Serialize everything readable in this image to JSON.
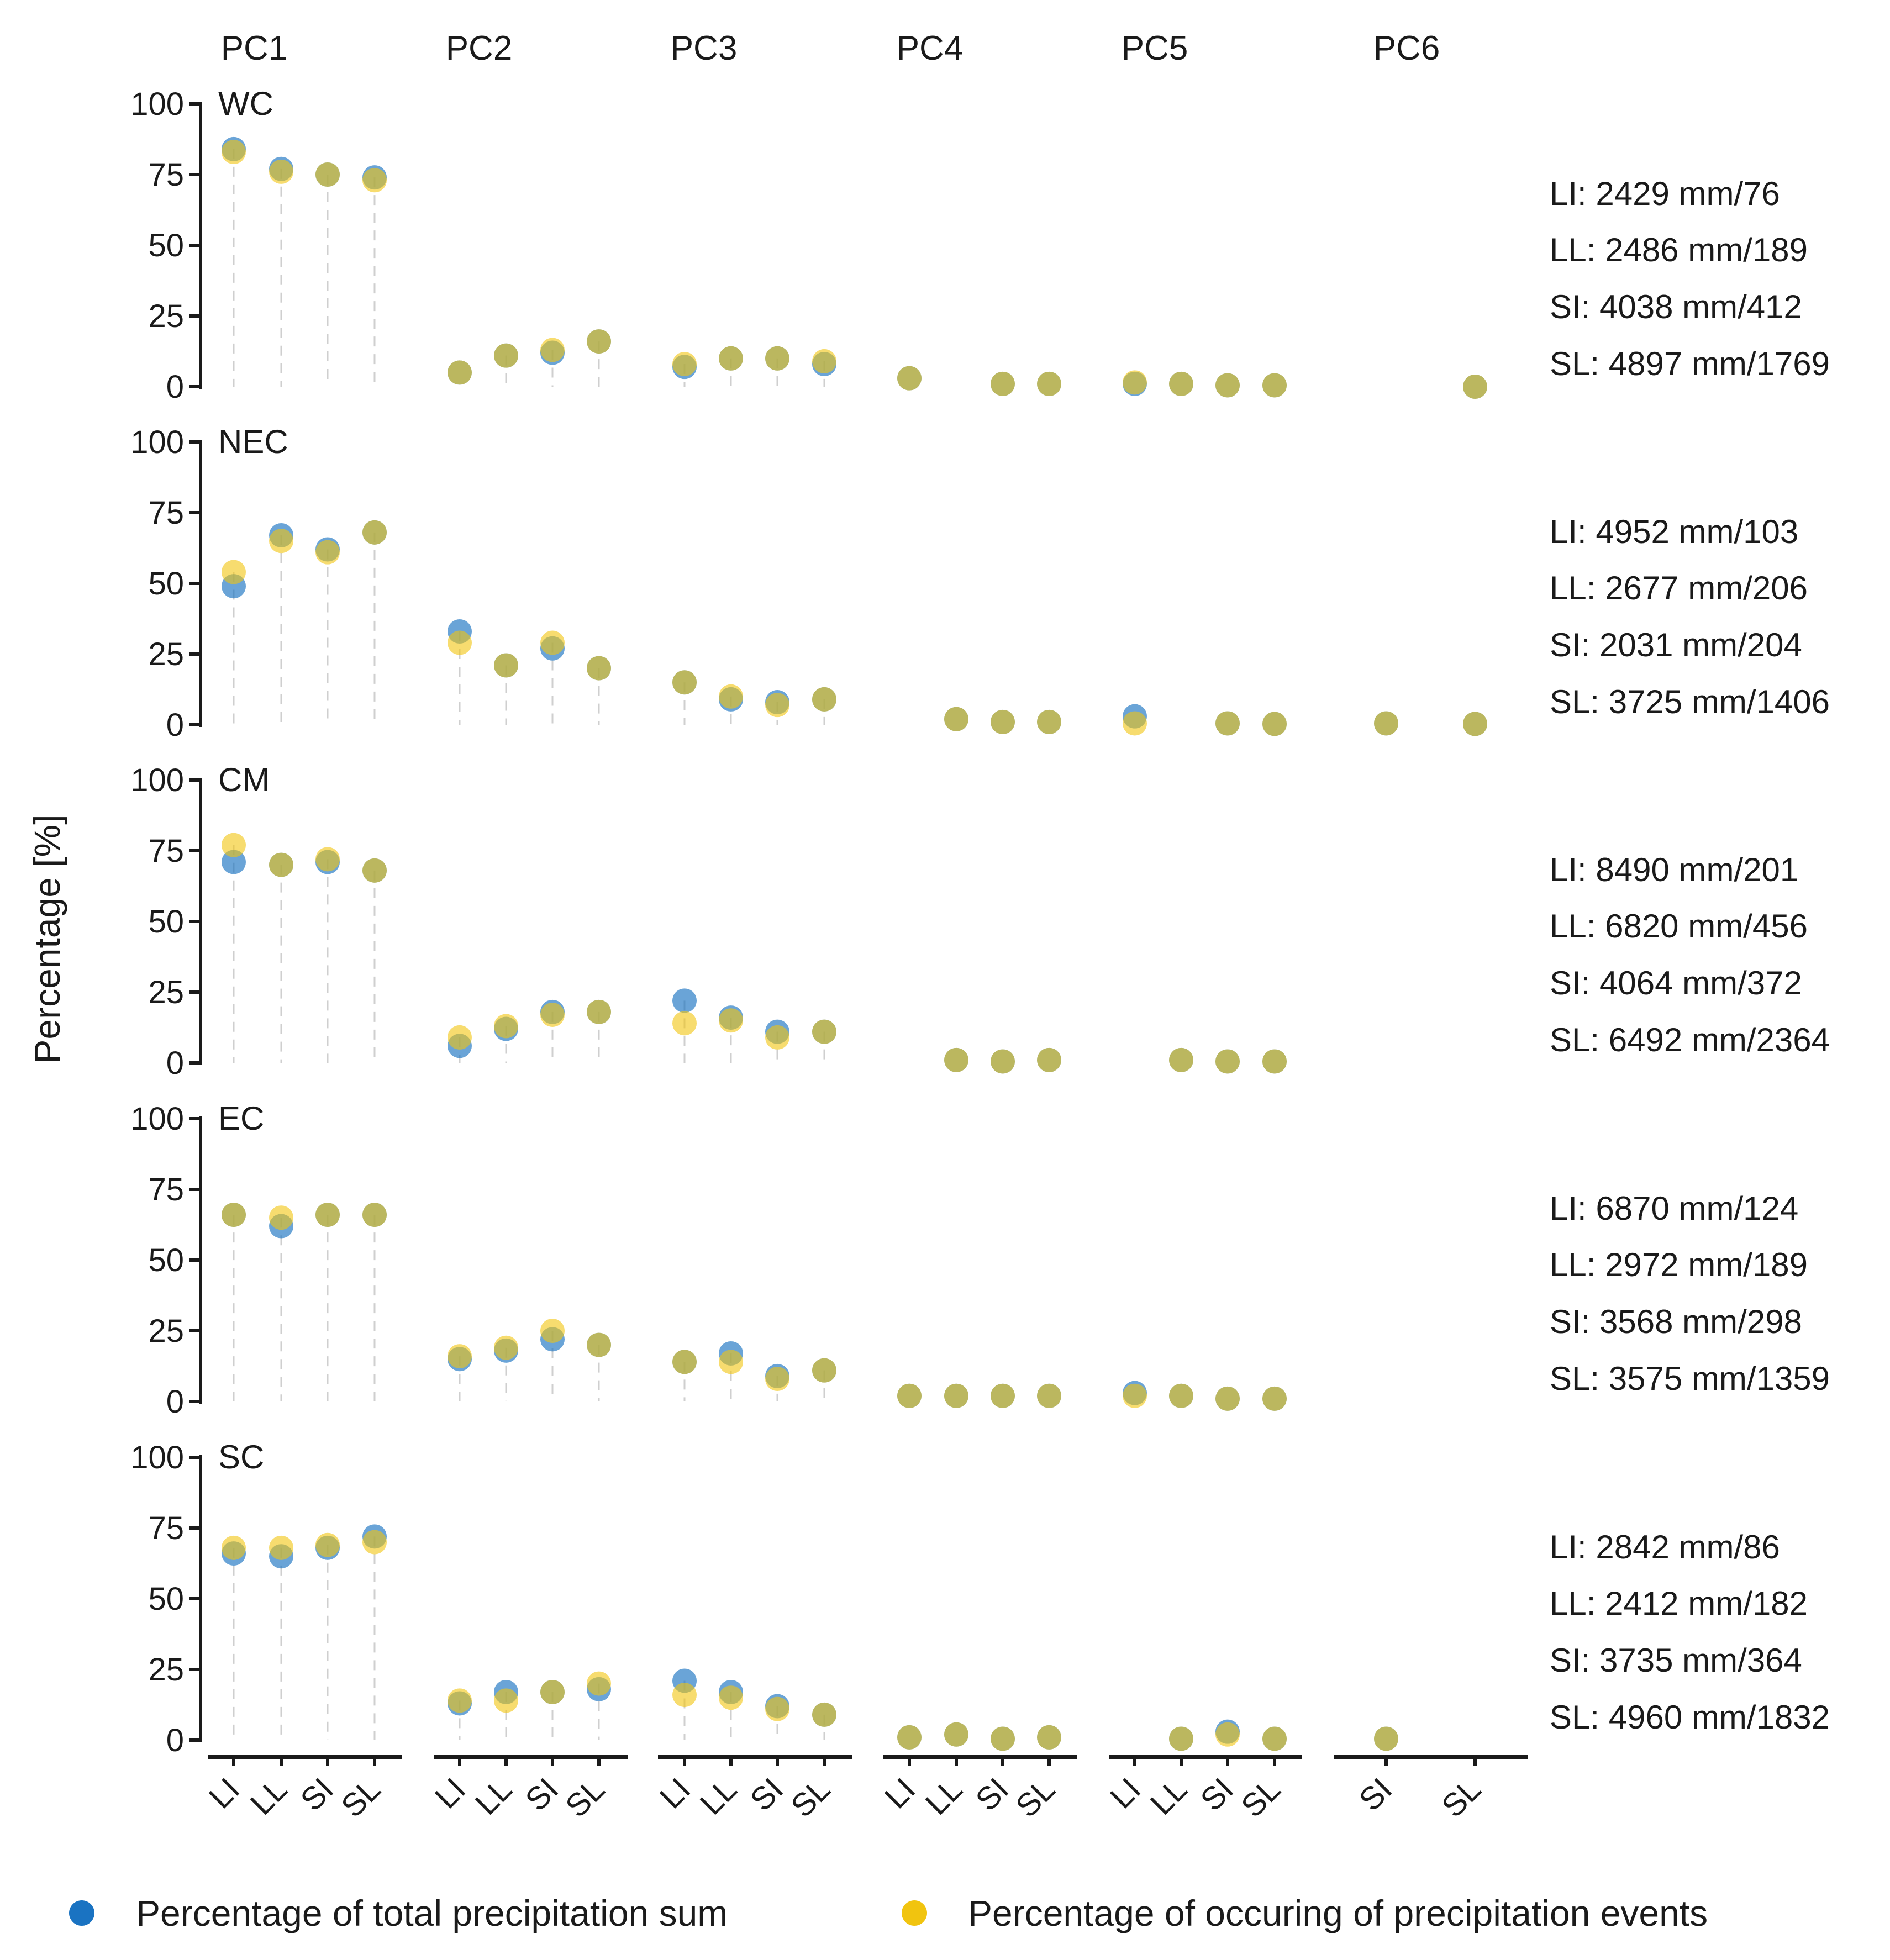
{
  "chart_data": {
    "type": "scatter",
    "y_label": "Percentage [%]",
    "ylim": [
      0,
      100
    ],
    "y_ticks": [
      0,
      25,
      50,
      75,
      100
    ],
    "pcs": [
      "PC1",
      "PC2",
      "PC3",
      "PC4",
      "PC5",
      "PC6"
    ],
    "categories": [
      "LI",
      "LL",
      "SI",
      "SL"
    ],
    "pc_categories": [
      [
        "LI",
        "LL",
        "SI",
        "SL"
      ],
      [
        "LI",
        "LL",
        "SI",
        "SL"
      ],
      [
        "LI",
        "LL",
        "SI",
        "SL"
      ],
      [
        "LI",
        "LL",
        "SI",
        "SL"
      ],
      [
        "LI",
        "LL",
        "SI",
        "SL"
      ],
      [
        "SI",
        "SL"
      ]
    ],
    "series": [
      {
        "name": "Percentage of total precipitation sum",
        "color": "#1a73c2"
      },
      {
        "name": "Percentage of occuring of precipitation events",
        "color": "#f1c40f"
      }
    ],
    "panels": [
      {
        "region": "WC",
        "notes": [
          "LI: 2429 mm/76",
          "LL: 2486 mm/189",
          "SI: 4038 mm/412",
          "SL: 4897 mm/1769"
        ],
        "precip": [
          [
            84,
            77,
            75,
            74
          ],
          [
            5,
            11,
            12,
            16
          ],
          [
            7,
            10,
            10,
            8
          ],
          [
            3,
            null,
            1,
            1
          ],
          [
            1,
            1,
            0.5,
            0.5
          ],
          [
            null,
            0
          ]
        ],
        "events": [
          [
            83,
            76,
            75,
            73
          ],
          [
            5,
            11,
            13,
            16
          ],
          [
            8,
            10,
            10,
            9
          ],
          [
            3,
            null,
            1,
            1
          ],
          [
            1.5,
            1,
            0.5,
            0.5
          ],
          [
            null,
            0
          ]
        ]
      },
      {
        "region": "NEC",
        "notes": [
          "LI: 4952 mm/103",
          "LL: 2677 mm/206",
          "SI: 2031 mm/204",
          "SL: 3725 mm/1406"
        ],
        "precip": [
          [
            49,
            67,
            62,
            68
          ],
          [
            33,
            21,
            27,
            20
          ],
          [
            15,
            9,
            8,
            9
          ],
          [
            null,
            2,
            1,
            1
          ],
          [
            3,
            null,
            0.5,
            0.3
          ],
          [
            0.5,
            0.3
          ]
        ],
        "events": [
          [
            54,
            65,
            61,
            68
          ],
          [
            29,
            21,
            29,
            20
          ],
          [
            15,
            10,
            7,
            9
          ],
          [
            null,
            2,
            1,
            1
          ],
          [
            0.5,
            null,
            0.5,
            0.3
          ],
          [
            0.5,
            0.3
          ]
        ]
      },
      {
        "region": "CM",
        "notes": [
          "LI: 8490 mm/201",
          "LL: 6820 mm/456",
          "SI: 4064 mm/372",
          "SL: 6492 mm/2364"
        ],
        "precip": [
          [
            71,
            70,
            71,
            68
          ],
          [
            6,
            12,
            18,
            18
          ],
          [
            22,
            16,
            11,
            11
          ],
          [
            null,
            1,
            0.5,
            1
          ],
          [
            null,
            1,
            0.5,
            0.5
          ],
          [
            null,
            null
          ]
        ],
        "events": [
          [
            77,
            70,
            72,
            68
          ],
          [
            9,
            13,
            17,
            18
          ],
          [
            14,
            15,
            9,
            11
          ],
          [
            null,
            1,
            0.5,
            1
          ],
          [
            null,
            1,
            0.5,
            0.5
          ],
          [
            null,
            null
          ]
        ]
      },
      {
        "region": "EC",
        "notes": [
          "LI: 6870 mm/124",
          "LL: 2972 mm/189",
          "SI: 3568 mm/298",
          "SL: 3575 mm/1359"
        ],
        "precip": [
          [
            66,
            62,
            66,
            66
          ],
          [
            15,
            18,
            22,
            20
          ],
          [
            14,
            17,
            9,
            11
          ],
          [
            2,
            2,
            2,
            2
          ],
          [
            3,
            2,
            1,
            1
          ],
          [
            null,
            null
          ]
        ],
        "events": [
          [
            66,
            65,
            66,
            66
          ],
          [
            16,
            19,
            25,
            20
          ],
          [
            14,
            14,
            8,
            11
          ],
          [
            2,
            2,
            2,
            2
          ],
          [
            2,
            2,
            1,
            1
          ],
          [
            null,
            null
          ]
        ]
      },
      {
        "region": "SC",
        "notes": [
          "LI: 2842 mm/86",
          "LL: 2412 mm/182",
          "SI: 3735 mm/364",
          "SL: 4960 mm/1832"
        ],
        "precip": [
          [
            66,
            65,
            68,
            72
          ],
          [
            13,
            17,
            17,
            18
          ],
          [
            21,
            17,
            12,
            9
          ],
          [
            1,
            2,
            0.5,
            1
          ],
          [
            null,
            0.5,
            3,
            0.5
          ],
          [
            0.5,
            null
          ]
        ],
        "events": [
          [
            68,
            68,
            69,
            70
          ],
          [
            14,
            14,
            17,
            20
          ],
          [
            16,
            15,
            11,
            9
          ],
          [
            1,
            2,
            0.5,
            1
          ],
          [
            null,
            0.5,
            2,
            0.5
          ],
          [
            0.5,
            null
          ]
        ]
      }
    ]
  }
}
